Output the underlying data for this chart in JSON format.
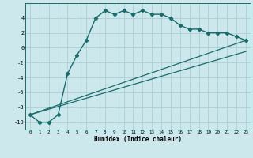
{
  "title": "",
  "xlabel": "Humidex (Indice chaleur)",
  "bg_color": "#cce8ec",
  "grid_color": "#aacfd4",
  "line_color": "#1a6b6b",
  "xlim": [
    -0.5,
    23.5
  ],
  "ylim": [
    -11,
    6
  ],
  "xticks": [
    0,
    1,
    2,
    3,
    4,
    5,
    6,
    7,
    8,
    9,
    10,
    11,
    12,
    13,
    14,
    15,
    16,
    17,
    18,
    19,
    20,
    21,
    22,
    23
  ],
  "yticks": [
    -10,
    -8,
    -6,
    -4,
    -2,
    0,
    2,
    4
  ],
  "curve1_x": [
    0,
    1,
    2,
    3,
    4,
    5,
    6,
    7,
    8,
    9,
    10,
    11,
    12,
    13,
    14,
    15,
    16,
    17,
    18,
    19,
    20,
    21,
    22,
    23
  ],
  "curve1_y": [
    -9,
    -10,
    -10,
    -9,
    -3.5,
    -1,
    1,
    4,
    5,
    4.5,
    5,
    4.5,
    5,
    4.5,
    4.5,
    4,
    3,
    2.5,
    2.5,
    2,
    2,
    2,
    1.5,
    1
  ],
  "curve2_x": [
    0,
    23
  ],
  "curve2_y": [
    -9,
    1.0
  ],
  "curve3_x": [
    0,
    23
  ],
  "curve3_y": [
    -9,
    -0.5
  ]
}
